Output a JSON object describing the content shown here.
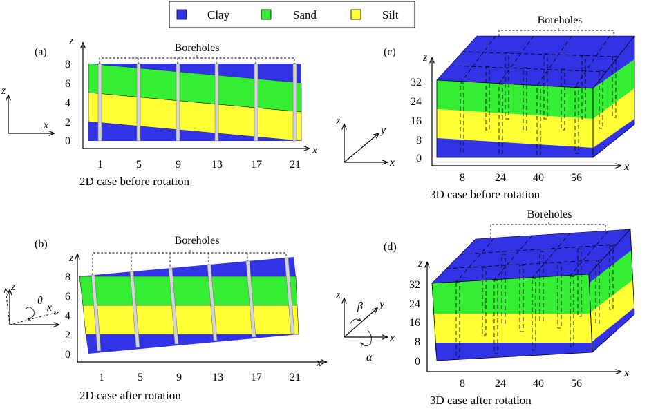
{
  "colors": {
    "clay": "#3333e6",
    "sand": "#33ee33",
    "silt": "#ffff33"
  },
  "legend": [
    {
      "label": "Clay",
      "color": "#3333e6"
    },
    {
      "label": "Sand",
      "color": "#33ee33"
    },
    {
      "label": "Silt",
      "color": "#ffff33"
    }
  ],
  "panel_a": {
    "tag": "(a)",
    "caption": "2D case before rotation",
    "boreholes_label": "Boreholes",
    "x_ticks": [
      "1",
      "5",
      "9",
      "13",
      "17",
      "21"
    ],
    "z_ticks": [
      "0",
      "2",
      "4",
      "6",
      "8"
    ]
  },
  "panel_b": {
    "tag": "(b)",
    "caption": "2D case after rotation",
    "boreholes_label": "Boreholes",
    "x_ticks": [
      "1",
      "5",
      "9",
      "13",
      "17",
      "21"
    ],
    "z_ticks": [
      "0",
      "2",
      "4",
      "6",
      "8"
    ]
  },
  "panel_c": {
    "tag": "(c)",
    "caption": "3D case before rotation",
    "boreholes_label": "Boreholes",
    "x_ticks": [
      "8",
      "24",
      "40",
      "56"
    ],
    "z_ticks": [
      "0",
      "8",
      "16",
      "24",
      "32"
    ]
  },
  "panel_d": {
    "tag": "(d)",
    "caption": "3D case after rotation",
    "boreholes_label": "Boreholes",
    "x_ticks": [
      "8",
      "24",
      "40",
      "56"
    ],
    "z_ticks": [
      "0",
      "8",
      "16",
      "24",
      "32"
    ]
  },
  "axis_labels": {
    "x": "x",
    "y": "y",
    "z": "z",
    "theta": "θ",
    "alpha": "α",
    "beta": "β"
  }
}
